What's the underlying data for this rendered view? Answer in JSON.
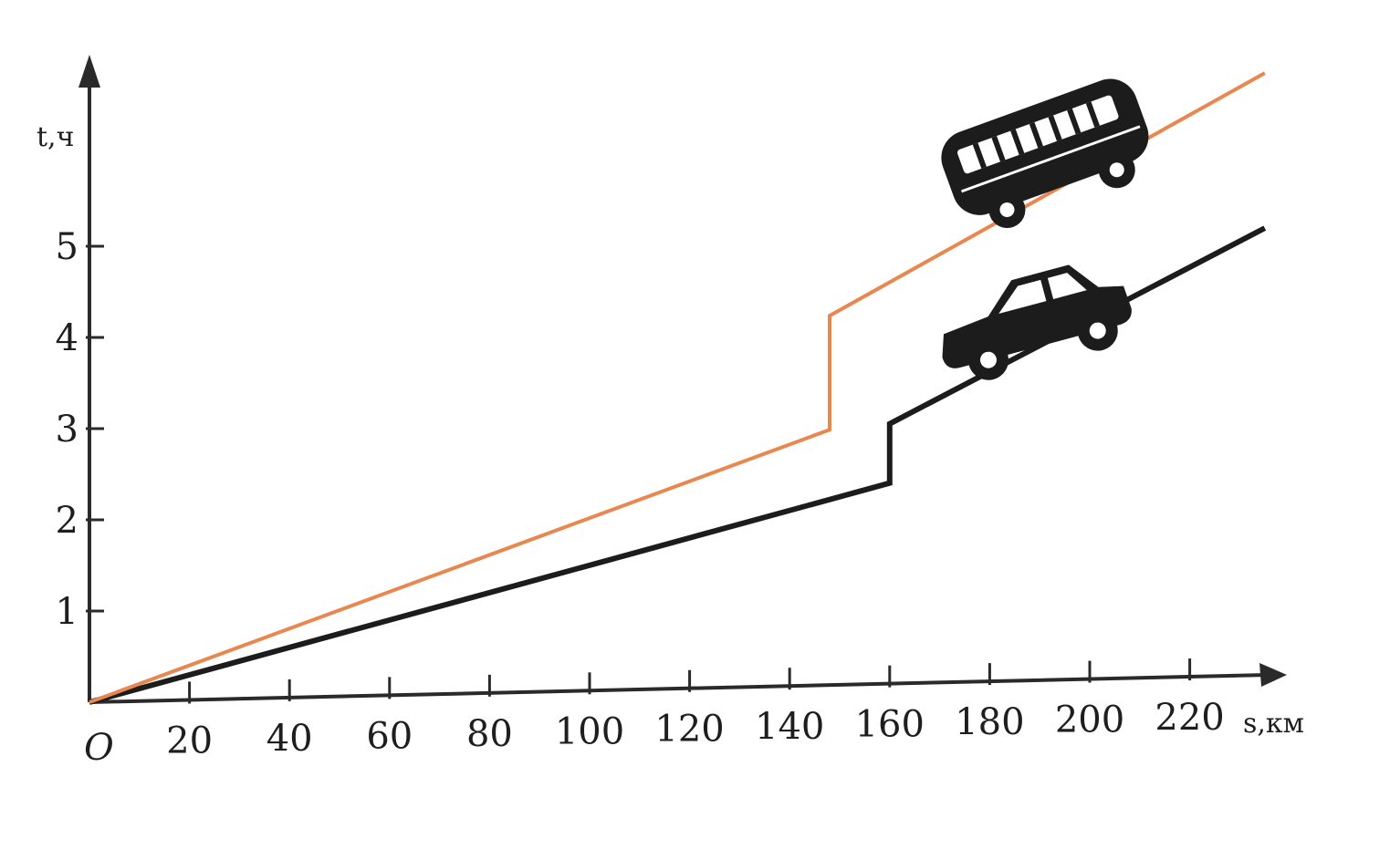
{
  "chart_data": {
    "type": "line",
    "title": "",
    "xlabel": "s,км",
    "ylabel": "t,ч",
    "origin_label": "O",
    "xlim": [
      0,
      235
    ],
    "ylim": [
      0,
      6
    ],
    "x_ticks": [
      20,
      40,
      60,
      80,
      100,
      120,
      140,
      160,
      180,
      200,
      220
    ],
    "y_ticks": [
      1,
      2,
      3,
      4,
      5
    ],
    "grid": false,
    "legend": "none",
    "series": [
      {
        "icon": "bus-icon",
        "color": "#e8874f",
        "points": [
          [
            0,
            0
          ],
          [
            148,
            2.8
          ],
          [
            148,
            4.05
          ],
          [
            235,
            6.6
          ]
        ]
      },
      {
        "icon": "car-icon",
        "color": "#1c1c1c",
        "points": [
          [
            0,
            0
          ],
          [
            160,
            2.2
          ],
          [
            160,
            2.85
          ],
          [
            235,
            4.9
          ]
        ]
      }
    ]
  },
  "colors": {
    "axis": "#2a2a2a",
    "text": "#1e1e1e"
  }
}
